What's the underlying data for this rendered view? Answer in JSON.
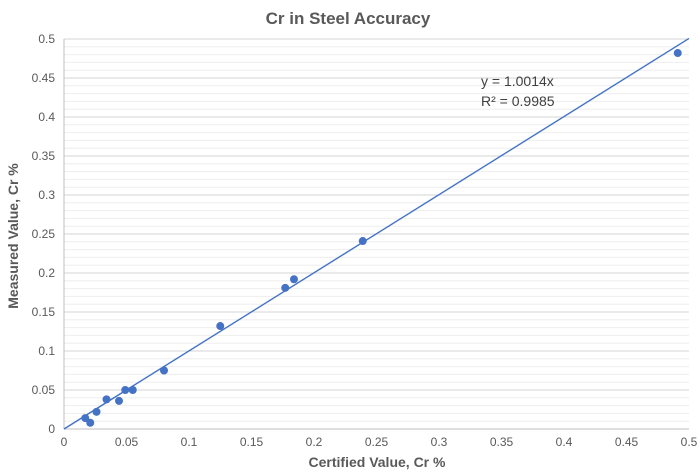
{
  "chart_data": {
    "type": "scatter",
    "title": "Cr in Steel Accuracy",
    "xlabel": "Certified Value, Cr %",
    "ylabel": "Measured Value, Cr %",
    "xlim": [
      0,
      0.5
    ],
    "ylim": [
      0,
      0.5
    ],
    "xticks": [
      "0",
      "0.05",
      "0.1",
      "0.15",
      "0.2",
      "0.25",
      "0.3",
      "0.35",
      "0.4",
      "0.45",
      "0.5"
    ],
    "yticks": [
      "0",
      "0.05",
      "0.1",
      "0.15",
      "0.2",
      "0.25",
      "0.3",
      "0.35",
      "0.4",
      "0.45",
      "0.5"
    ],
    "grid": true,
    "series": [
      {
        "color": "#4472c4",
        "points": [
          {
            "x": 0.017,
            "y": 0.014
          },
          {
            "x": 0.021,
            "y": 0.008
          },
          {
            "x": 0.026,
            "y": 0.022
          },
          {
            "x": 0.034,
            "y": 0.038
          },
          {
            "x": 0.044,
            "y": 0.036
          },
          {
            "x": 0.049,
            "y": 0.05
          },
          {
            "x": 0.055,
            "y": 0.05
          },
          {
            "x": 0.08,
            "y": 0.075
          },
          {
            "x": 0.125,
            "y": 0.132
          },
          {
            "x": 0.177,
            "y": 0.181
          },
          {
            "x": 0.184,
            "y": 0.192
          },
          {
            "x": 0.239,
            "y": 0.241
          },
          {
            "x": 0.491,
            "y": 0.482
          }
        ]
      }
    ],
    "trendline": {
      "slope": 1.0014,
      "x_range": [
        0,
        0.5
      ],
      "color": "#4472c4"
    },
    "annotations": {
      "equation": "y = 1.0014x",
      "r_squared": "R² = 0.9985"
    }
  }
}
